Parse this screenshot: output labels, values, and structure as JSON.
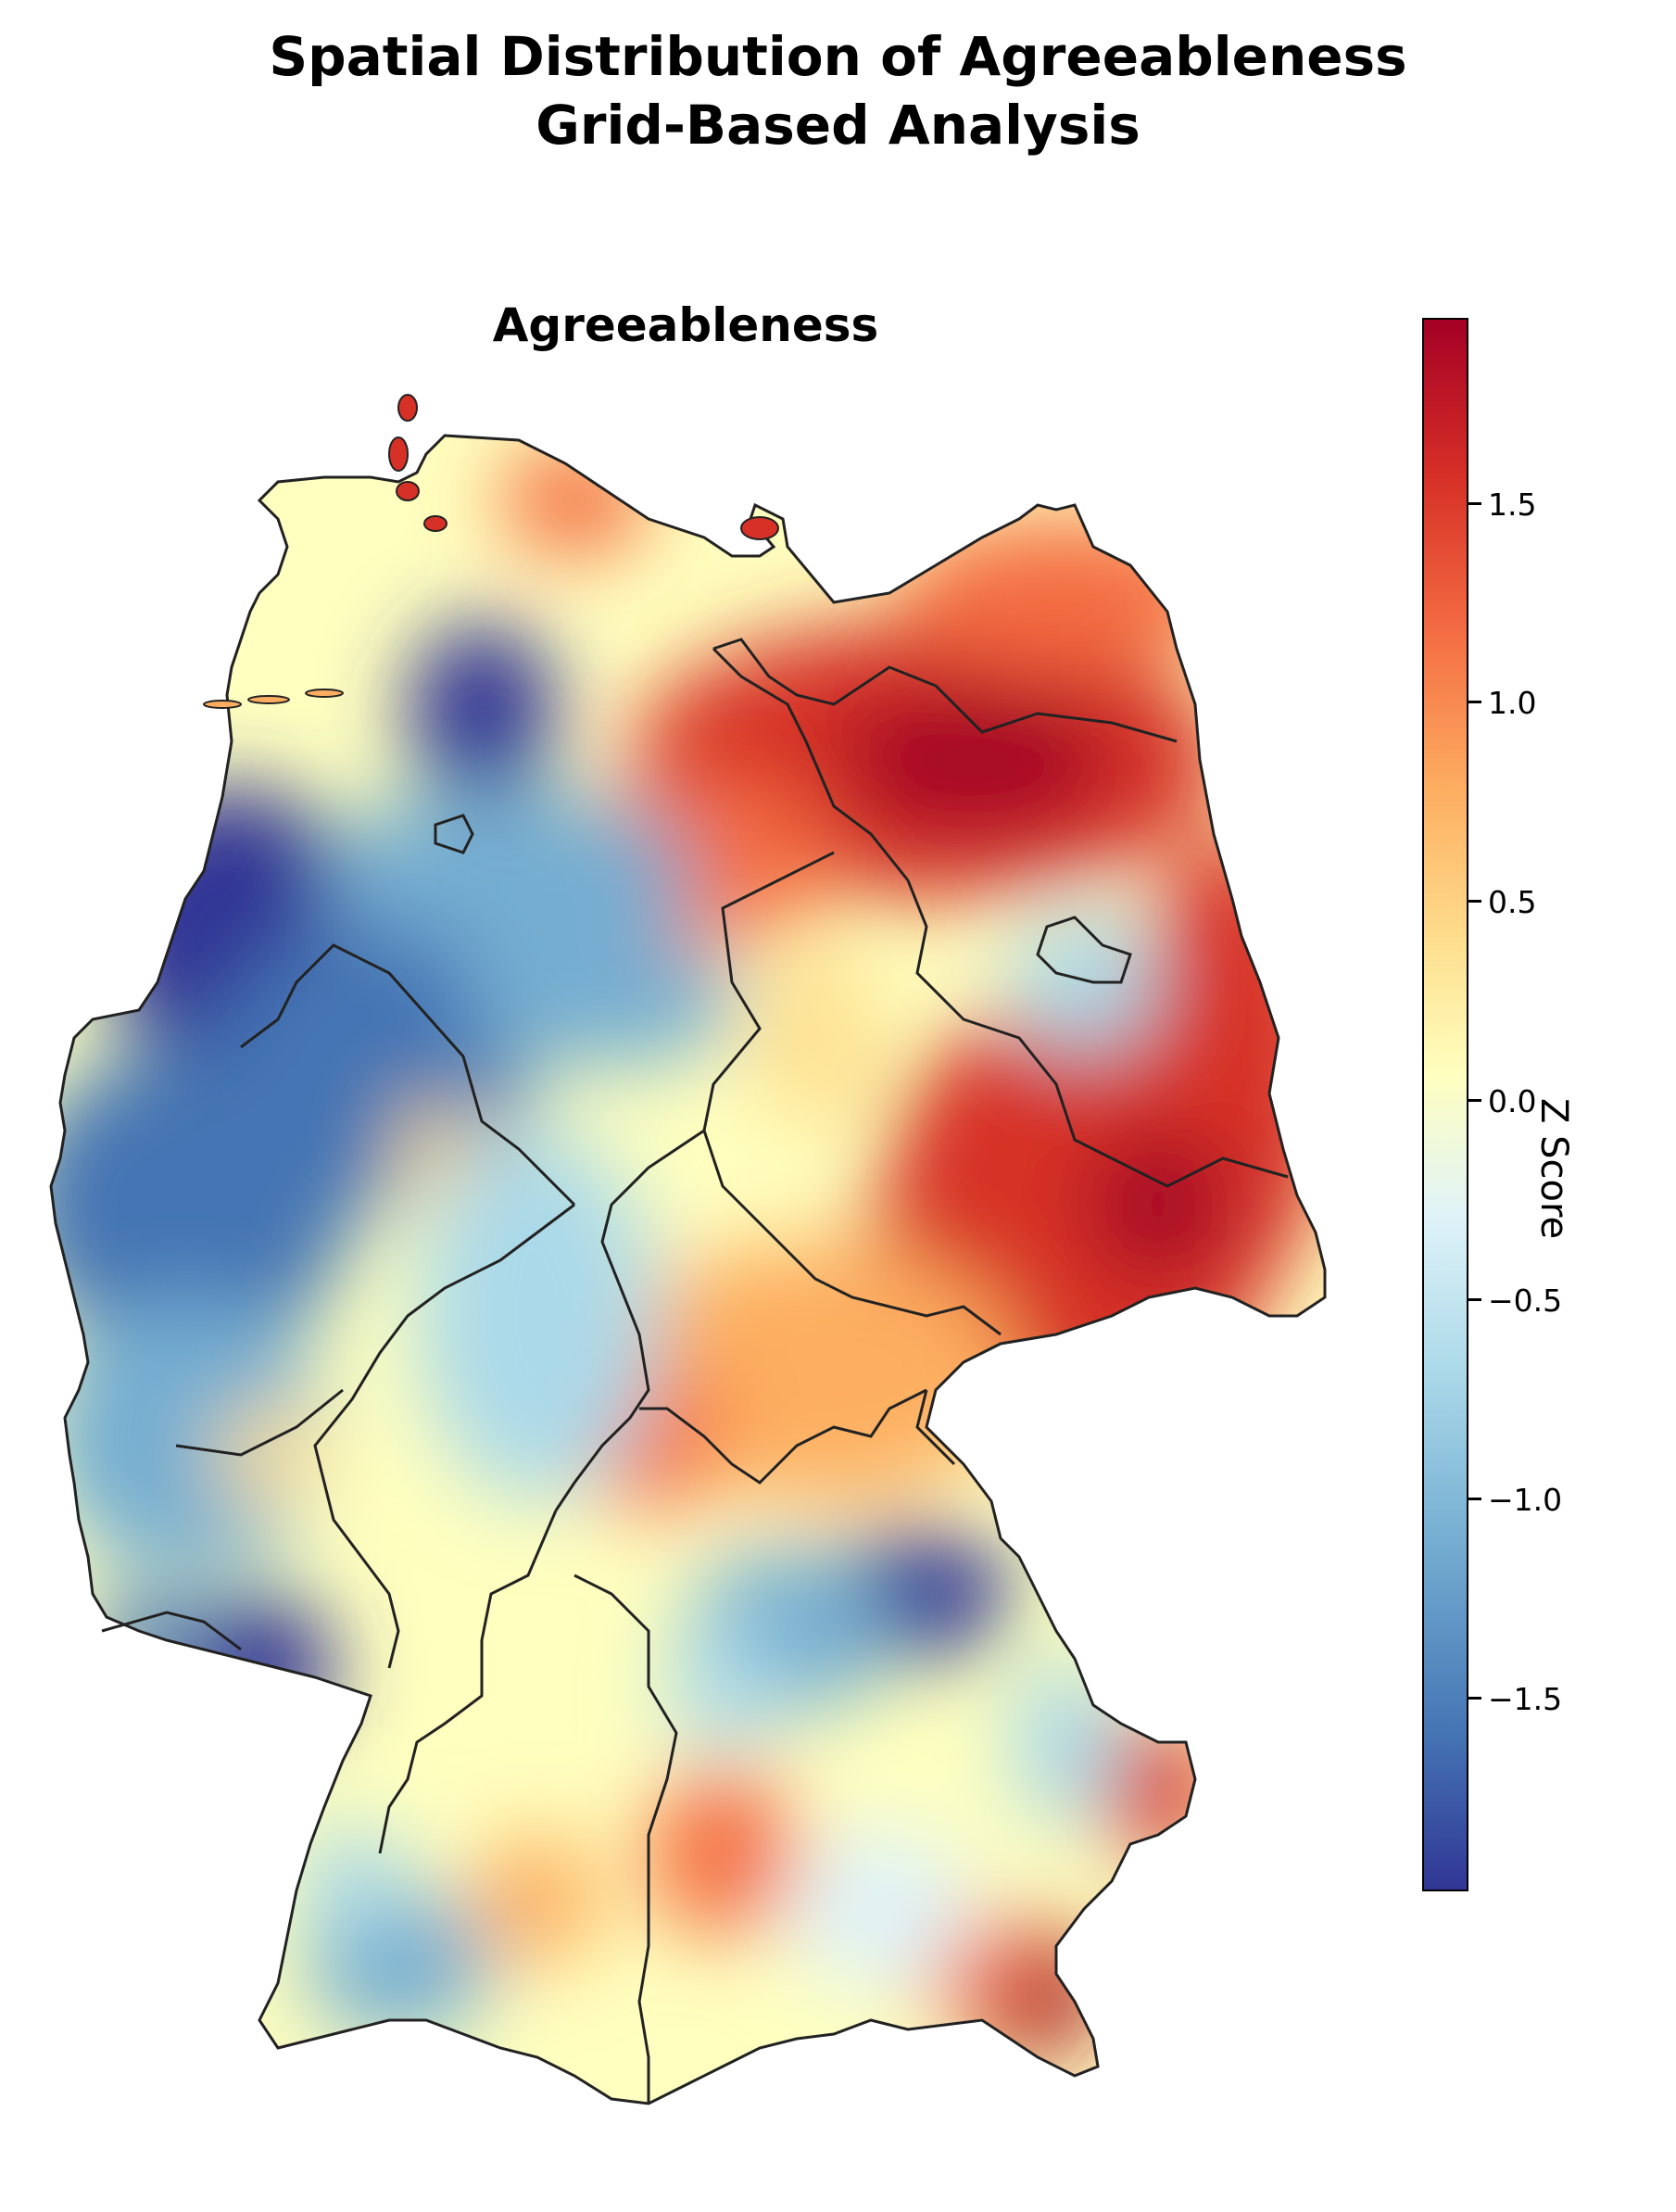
{
  "title_line1": "Spatial Distribution of Agreeableness",
  "title_line2": "Grid-Based Analysis",
  "panel_title": "Agreeableness",
  "colorbar": {
    "label": "Z Score",
    "ticks": [
      "1.5",
      "1.0",
      "0.5",
      "0.0",
      "−0.5",
      "−1.0",
      "−1.5"
    ],
    "tick_values": [
      1.5,
      1.0,
      0.5,
      0.0,
      -0.5,
      -1.0,
      -1.5
    ],
    "range": [
      -2.0,
      1.95
    ],
    "colormap": [
      "#313695",
      "#4575b4",
      "#74add1",
      "#abd9e9",
      "#e0f3f8",
      "#ffffbf",
      "#fee090",
      "#fdae61",
      "#f46d43",
      "#d73027",
      "#a50026"
    ]
  },
  "map": {
    "high_regions": [
      "north-east",
      "saxony",
      "east-bavaria-border",
      "south-east"
    ],
    "low_regions": [
      "north-west",
      "west",
      "saarland",
      "east-bavaria-forest"
    ]
  }
}
